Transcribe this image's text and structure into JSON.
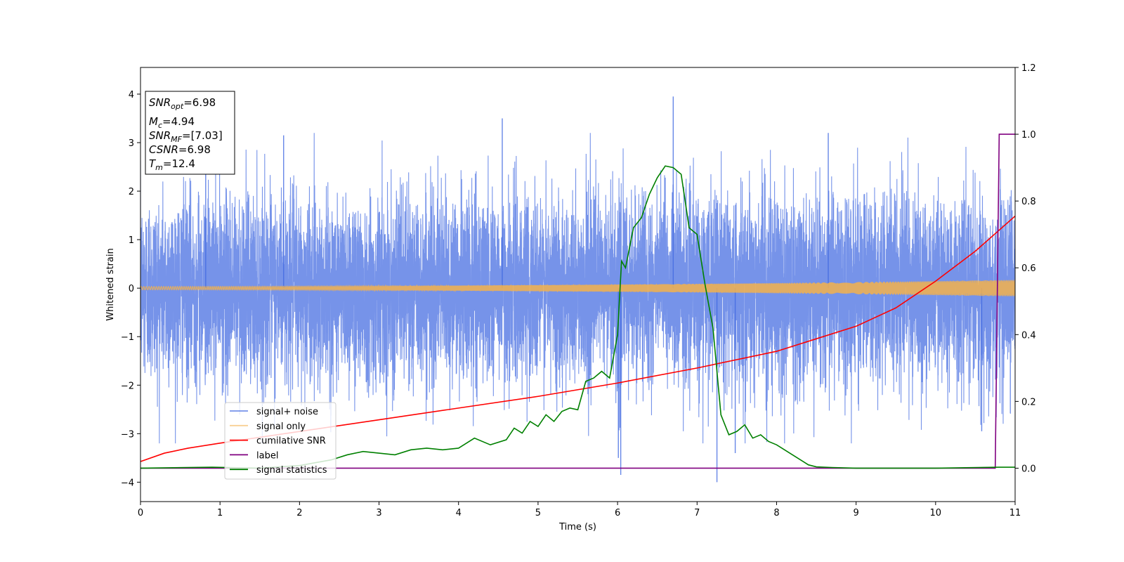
{
  "chart_data": {
    "type": "line",
    "xlabel": "Time (s)",
    "ylabel": "Whitened strain",
    "xlim": [
      0,
      11
    ],
    "ylim": [
      -4.4,
      4.55
    ],
    "y2lim": [
      -0.1,
      1.2
    ],
    "x_ticks": [
      0,
      1,
      2,
      3,
      4,
      5,
      6,
      7,
      8,
      9,
      10,
      11
    ],
    "y_ticks": [
      -4,
      -3,
      -2,
      -1,
      0,
      1,
      2,
      3,
      4
    ],
    "y2_ticks": [
      0.0,
      0.2,
      0.4,
      0.6,
      0.8,
      1.0,
      1.2
    ],
    "y_tick_labels": [
      "−4",
      "−3",
      "−2",
      "−1",
      "0",
      "1",
      "2",
      "3",
      "4"
    ],
    "y2_tick_labels": [
      "0.0",
      "0.2",
      "0.4",
      "0.6",
      "0.8",
      "1.0",
      "1.2"
    ],
    "grid": false,
    "legend_placement": "lower-left",
    "series": [
      {
        "name": "signal+ noise",
        "axis": "left",
        "color": "#4169e1",
        "noise_sigma": 1.0,
        "spikes": [
          [
            0.82,
            3.2
          ],
          [
            1.8,
            3.15
          ],
          [
            4.55,
            3.5
          ],
          [
            6.01,
            -3.5
          ],
          [
            6.04,
            -3.85
          ],
          [
            6.7,
            3.95
          ],
          [
            7.25,
            -4.0
          ],
          [
            7.48,
            -3.4
          ],
          [
            8.65,
            3.2
          ],
          [
            10.58,
            -2.95
          ]
        ]
      },
      {
        "name": "signal only",
        "axis": "left",
        "color": "#f5b14b",
        "amplitude_start": 0.035,
        "amplitude_end": 0.17
      },
      {
        "name": "cumilative SNR",
        "axis": "right",
        "color": "#ff0000",
        "x": [
          0,
          0.3,
          0.6,
          1,
          2,
          3,
          4,
          5,
          6,
          7,
          8,
          9,
          9.5,
          10,
          10.5,
          11
        ],
        "y": [
          0.02,
          0.045,
          0.06,
          0.075,
          0.11,
          0.145,
          0.18,
          0.215,
          0.255,
          0.3,
          0.35,
          0.425,
          0.48,
          0.56,
          0.65,
          0.755
        ]
      },
      {
        "name": "label",
        "axis": "right",
        "color": "#800080",
        "x": [
          0,
          10.75,
          10.8,
          11
        ],
        "y": [
          0.0,
          0.0,
          1.0,
          1.0
        ]
      },
      {
        "name": "signal statistics",
        "axis": "right",
        "color": "#008000",
        "x": [
          0,
          0.9,
          1.5,
          2.0,
          2.4,
          2.6,
          2.8,
          3.0,
          3.2,
          3.4,
          3.6,
          3.8,
          4.0,
          4.2,
          4.4,
          4.6,
          4.7,
          4.8,
          4.9,
          5.0,
          5.1,
          5.2,
          5.3,
          5.4,
          5.5,
          5.6,
          5.7,
          5.8,
          5.9,
          6.0,
          6.05,
          6.1,
          6.2,
          6.3,
          6.4,
          6.5,
          6.6,
          6.7,
          6.8,
          6.9,
          7.0,
          7.1,
          7.2,
          7.3,
          7.4,
          7.5,
          7.6,
          7.7,
          7.8,
          7.9,
          8.0,
          8.2,
          8.4,
          8.5,
          8.7,
          9.0,
          10.0,
          10.8,
          11.0
        ],
        "y": [
          0.0,
          0.003,
          0.0,
          0.008,
          0.025,
          0.04,
          0.05,
          0.045,
          0.04,
          0.055,
          0.06,
          0.055,
          0.06,
          0.09,
          0.07,
          0.085,
          0.12,
          0.105,
          0.14,
          0.125,
          0.16,
          0.14,
          0.17,
          0.18,
          0.175,
          0.26,
          0.27,
          0.29,
          0.27,
          0.4,
          0.62,
          0.6,
          0.72,
          0.75,
          0.82,
          0.87,
          0.905,
          0.9,
          0.88,
          0.72,
          0.7,
          0.55,
          0.42,
          0.16,
          0.1,
          0.11,
          0.13,
          0.09,
          0.1,
          0.08,
          0.07,
          0.04,
          0.01,
          0.004,
          0.002,
          0.0,
          0.0,
          0.003,
          0.003
        ]
      }
    ],
    "annotation": {
      "lines": [
        {
          "base": "SNR",
          "sub": "opt",
          "value": "=6.98"
        },
        {
          "base": "M",
          "sub": "c",
          "value": "=4.94"
        },
        {
          "base": "SNR",
          "sub": "MF",
          "value": "=[7.03]"
        },
        {
          "base": "CSNR",
          "sub": "",
          "value": "=6.98"
        },
        {
          "base": "T",
          "sub": "m",
          "value": "=12.4"
        }
      ]
    }
  }
}
